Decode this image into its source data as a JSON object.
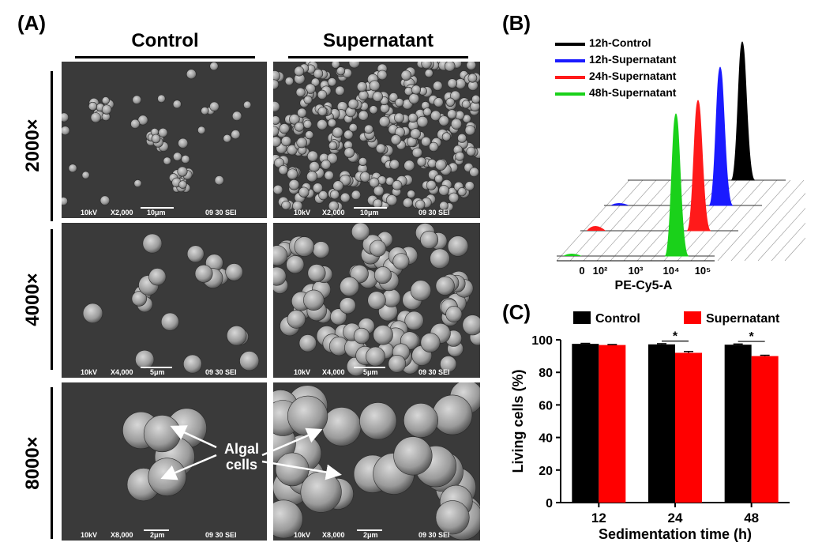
{
  "panel_a": {
    "letter": "(A)",
    "col_control": "Control",
    "col_supernatant": "Supernatant",
    "rows": [
      {
        "mag": "2000×",
        "footer": {
          "kv": "10kV",
          "mag": "X2,000",
          "scale": "10μm",
          "code": "09 30 SEI"
        }
      },
      {
        "mag": "4000×",
        "footer": {
          "kv": "10kV",
          "mag": "X4,000",
          "scale": "5μm",
          "code": "09 30 SEI"
        }
      },
      {
        "mag": "8000×",
        "footer": {
          "kv": "10kV",
          "mag": "X8,000",
          "scale": "2μm",
          "code": "09 30 SEI"
        }
      }
    ],
    "annotation_line1": "Algal",
    "annotation_line2": "cells"
  },
  "panel_b": {
    "letter": "(B)",
    "xlabel": "PE-Cy5-A",
    "ticks": [
      "0",
      "10²",
      "10³",
      "10⁴",
      "10⁵"
    ],
    "legend": [
      {
        "name": "12h-Control",
        "color": "#000000"
      },
      {
        "name": "12h-Supernatant",
        "color": "#1a1aff"
      },
      {
        "name": "24h-Supernatant",
        "color": "#ff1a1a"
      },
      {
        "name": "48h-Supernatant",
        "color": "#1ad11a"
      }
    ]
  },
  "chart_data": {
    "type": "bar",
    "letter": "(C)",
    "categories": [
      "12",
      "24",
      "48"
    ],
    "series": [
      {
        "name": "Control",
        "color": "#000000",
        "values": [
          97.5,
          97.2,
          97.0
        ],
        "errors": [
          0.3,
          0.4,
          0.4
        ]
      },
      {
        "name": "Supernatant",
        "color": "#ff0000",
        "values": [
          96.8,
          92.0,
          90.0
        ],
        "errors": [
          0.3,
          0.8,
          0.5
        ]
      }
    ],
    "significance": [
      "",
      "*",
      "*"
    ],
    "xlabel": "Sedimentation time (h)",
    "ylabel": "Living cells (%)",
    "ylim": [
      0,
      100
    ],
    "yticks": [
      "0",
      "20",
      "40",
      "60",
      "80",
      "100"
    ],
    "legend_position": "top"
  }
}
